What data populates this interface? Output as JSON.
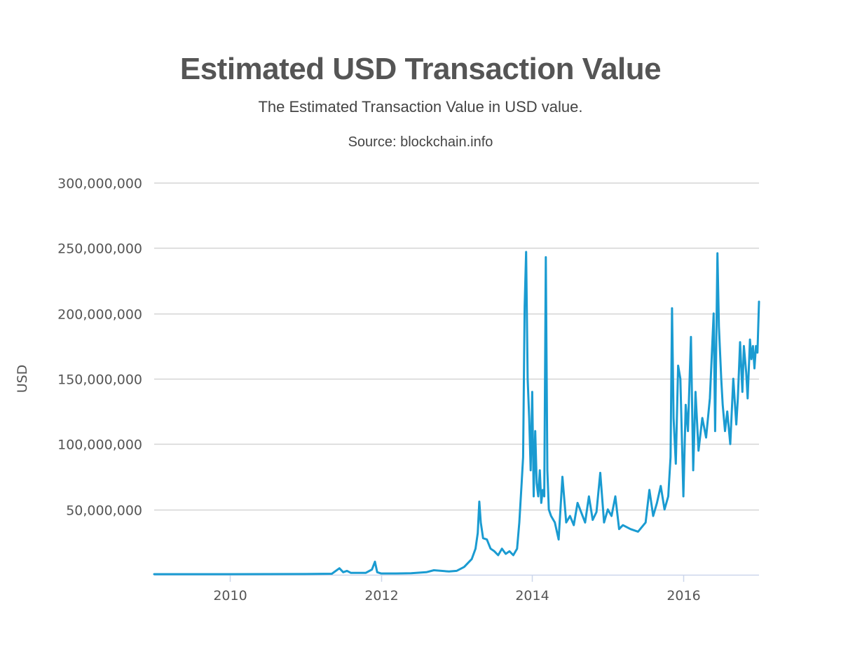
{
  "colors": {
    "series": "#1a9bd1",
    "grid": "#d4d4d4",
    "axis": "#ccd6eb",
    "text": "#555555"
  },
  "chart_data": {
    "type": "line",
    "title": "Estimated USD Transaction Value",
    "subtitle": "The Estimated Transaction Value in USD value.",
    "source": "Source: blockchain.info",
    "xlabel": "",
    "ylabel": "USD",
    "xlim": [
      2009.0,
      2017.0
    ],
    "ylim": [
      0,
      300000000
    ],
    "grid": true,
    "legend": "none",
    "x_ticks": [
      {
        "value": 2010,
        "label": "2010"
      },
      {
        "value": 2012,
        "label": "2012"
      },
      {
        "value": 2014,
        "label": "2014"
      },
      {
        "value": 2016,
        "label": "2016"
      }
    ],
    "y_ticks": [
      {
        "value": 50000000,
        "label": "50,000,000"
      },
      {
        "value": 100000000,
        "label": "100,000,000"
      },
      {
        "value": 150000000,
        "label": "150,000,000"
      },
      {
        "value": 200000000,
        "label": "200,000,000"
      },
      {
        "value": 250000000,
        "label": "250,000,000"
      },
      {
        "value": 300000000,
        "label": "300,000,000"
      }
    ],
    "series": [
      {
        "name": "Estimated USD Transaction Value",
        "x": [
          2009.0,
          2010.0,
          2011.0,
          2011.35,
          2011.45,
          2011.5,
          2011.55,
          2011.6,
          2011.7,
          2011.8,
          2011.88,
          2011.92,
          2011.95,
          2012.0,
          2012.2,
          2012.4,
          2012.6,
          2012.7,
          2012.8,
          2012.9,
          2013.0,
          2013.1,
          2013.2,
          2013.25,
          2013.28,
          2013.3,
          2013.32,
          2013.35,
          2013.4,
          2013.45,
          2013.5,
          2013.55,
          2013.6,
          2013.65,
          2013.7,
          2013.75,
          2013.8,
          2013.83,
          2013.86,
          2013.88,
          2013.9,
          2013.92,
          2013.94,
          2013.96,
          2013.98,
          2014.0,
          2014.02,
          2014.04,
          2014.06,
          2014.08,
          2014.1,
          2014.12,
          2014.14,
          2014.16,
          2014.18,
          2014.2,
          2014.22,
          2014.25,
          2014.3,
          2014.35,
          2014.4,
          2014.45,
          2014.5,
          2014.55,
          2014.6,
          2014.7,
          2014.75,
          2014.8,
          2014.85,
          2014.9,
          2014.95,
          2015.0,
          2015.05,
          2015.1,
          2015.15,
          2015.2,
          2015.3,
          2015.4,
          2015.5,
          2015.55,
          2015.6,
          2015.65,
          2015.7,
          2015.75,
          2015.8,
          2015.83,
          2015.85,
          2015.87,
          2015.9,
          2015.93,
          2015.96,
          2016.0,
          2016.03,
          2016.06,
          2016.1,
          2016.13,
          2016.16,
          2016.2,
          2016.25,
          2016.3,
          2016.35,
          2016.4,
          2016.42,
          2016.45,
          2016.47,
          2016.5,
          2016.52,
          2016.55,
          2016.58,
          2016.62,
          2016.66,
          2016.7,
          2016.72,
          2016.75,
          2016.78,
          2016.8,
          2016.83,
          2016.85,
          2016.88,
          2016.9,
          2016.92,
          2016.94,
          2016.96,
          2016.98,
          2017.0
        ],
        "values": [
          500000,
          500000,
          600000,
          800000,
          5000000,
          2000000,
          3000000,
          1500000,
          1500000,
          1500000,
          4000000,
          10000000,
          2000000,
          1000000,
          1000000,
          1200000,
          2000000,
          3500000,
          3000000,
          2500000,
          3000000,
          6000000,
          12000000,
          20000000,
          32000000,
          56000000,
          40000000,
          28000000,
          27000000,
          20000000,
          18000000,
          15000000,
          20000000,
          16000000,
          18000000,
          15000000,
          20000000,
          40000000,
          70000000,
          90000000,
          205000000,
          247000000,
          150000000,
          120000000,
          80000000,
          140000000,
          60000000,
          110000000,
          70000000,
          60000000,
          80000000,
          55000000,
          65000000,
          60000000,
          243000000,
          80000000,
          50000000,
          45000000,
          40000000,
          27000000,
          75000000,
          40000000,
          45000000,
          38000000,
          55000000,
          40000000,
          60000000,
          42000000,
          48000000,
          78000000,
          40000000,
          50000000,
          45000000,
          60000000,
          35000000,
          38000000,
          35000000,
          33000000,
          40000000,
          65000000,
          45000000,
          55000000,
          68000000,
          50000000,
          60000000,
          90000000,
          204000000,
          120000000,
          85000000,
          160000000,
          150000000,
          60000000,
          130000000,
          110000000,
          182000000,
          80000000,
          140000000,
          95000000,
          120000000,
          105000000,
          135000000,
          200000000,
          110000000,
          246000000,
          190000000,
          150000000,
          130000000,
          110000000,
          125000000,
          100000000,
          150000000,
          115000000,
          135000000,
          178000000,
          140000000,
          175000000,
          155000000,
          135000000,
          180000000,
          165000000,
          175000000,
          158000000,
          175000000,
          170000000,
          209000000
        ]
      }
    ]
  }
}
